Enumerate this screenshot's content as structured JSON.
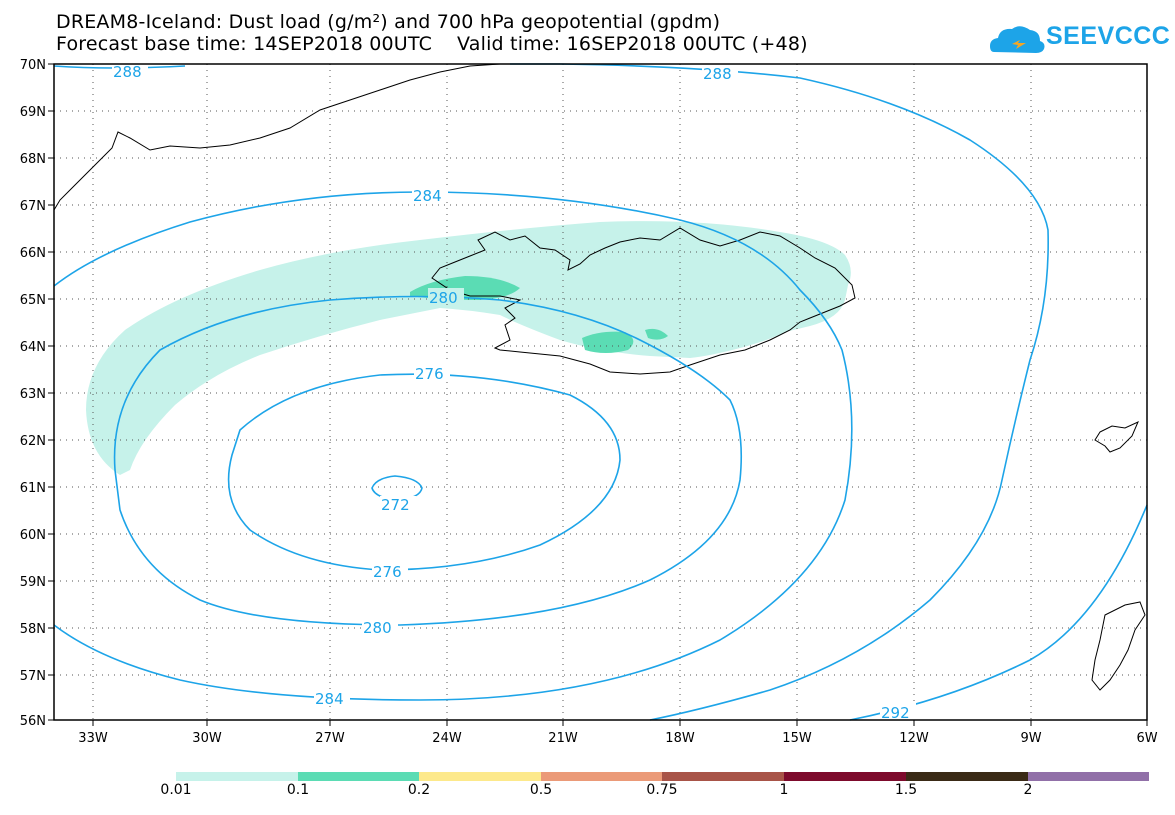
{
  "title": {
    "line1": "DREAM8-Iceland: Dust load (g/m²) and 700 hPa geopotential (gpdm)",
    "line2": "Forecast base time: 14SEP2018 00UTC    Valid time: 16SEP2018 00UTC (+48)"
  },
  "logo": {
    "text": "SEEVCCC",
    "icon": "cloud-icon",
    "color": "#1da4e8"
  },
  "map": {
    "lat_labels": [
      "70N",
      "69N",
      "68N",
      "67N",
      "66N",
      "65N",
      "64N",
      "63N",
      "62N",
      "61N",
      "60N",
      "59N",
      "58N",
      "57N",
      "56N"
    ],
    "lon_labels": [
      "33W",
      "30W",
      "27W",
      "24W",
      "21W",
      "18W",
      "15W",
      "12W",
      "9W",
      "6W"
    ],
    "contour_labels": [
      "288",
      "288",
      "284",
      "280",
      "276",
      "272",
      "276",
      "280",
      "284",
      "292"
    ],
    "contour_color": "#1da4e8"
  },
  "colorbar": {
    "labels": [
      "0.01",
      "0.1",
      "0.2",
      "0.5",
      "0.75",
      "1",
      "1.5",
      "2"
    ],
    "colors": [
      "#c6f2ea",
      "#5bdcb4",
      "#fde98b",
      "#eb9a78",
      "#a85448",
      "#7d0a2c",
      "#3a2a16",
      "#9170a8"
    ]
  }
}
